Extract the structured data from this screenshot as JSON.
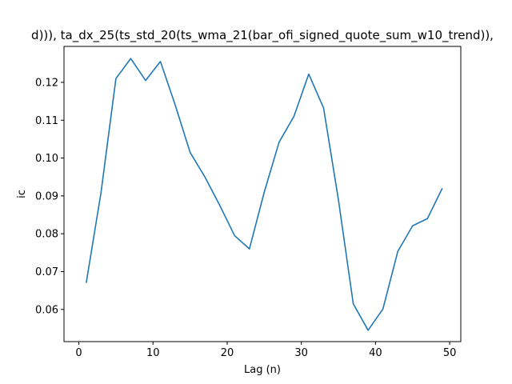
{
  "chart_data": {
    "type": "line",
    "title": "d))), ta_dx_25(ts_std_20(ts_wma_21(bar_ofi_signed_quote_sum_w10_trend)),",
    "xlabel": "Lag (n)",
    "ylabel": "ic",
    "xlim": [
      -2,
      51.5
    ],
    "ylim": [
      0.0515,
      0.1295
    ],
    "xticks": [
      0,
      10,
      20,
      30,
      40,
      50
    ],
    "yticks": [
      0.06,
      0.07,
      0.08,
      0.09,
      0.1,
      0.11,
      0.12
    ],
    "ytick_labels": [
      "0.06",
      "0.07",
      "0.08",
      "0.09",
      "0.10",
      "0.11",
      "0.12"
    ],
    "grid": false,
    "series": [
      {
        "color": "#1f77b4",
        "x": [
          1,
          3,
          5,
          7,
          9,
          11,
          13,
          15,
          17,
          19,
          21,
          23,
          25,
          27,
          29,
          31,
          33,
          35,
          37,
          39,
          41,
          43,
          45,
          47,
          49
        ],
        "y": [
          0.067,
          0.091,
          0.121,
          0.1263,
          0.1205,
          0.1255,
          0.114,
          0.1015,
          0.095,
          0.0875,
          0.0795,
          0.076,
          0.091,
          0.1042,
          0.111,
          0.1222,
          0.1132,
          0.089,
          0.0615,
          0.0545,
          0.0601,
          0.0753,
          0.0821,
          0.084,
          0.092
        ]
      }
    ]
  }
}
